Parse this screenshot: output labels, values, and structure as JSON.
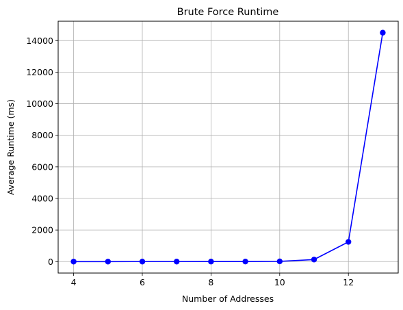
{
  "chart_data": {
    "type": "line",
    "title": "Brute Force Runtime",
    "xlabel": "Number of Addresses",
    "ylabel": "Average Runtime (ms)",
    "x": [
      4,
      5,
      6,
      7,
      8,
      9,
      10,
      11,
      12,
      13
    ],
    "series": [
      {
        "values": [
          0,
          0,
          1,
          1,
          2,
          5,
          15,
          130,
          1250,
          14500
        ],
        "color": "#0000ff",
        "marker": "circle"
      }
    ],
    "xlim": [
      3.55,
      13.45
    ],
    "ylim": [
      -725,
      15225
    ],
    "xticks": [
      4,
      6,
      8,
      10,
      12
    ],
    "yticks": [
      0,
      2000,
      4000,
      6000,
      8000,
      10000,
      12000,
      14000
    ],
    "grid": true,
    "colors": {
      "grid": "#b0b0b0",
      "line": "#0000ff"
    }
  }
}
